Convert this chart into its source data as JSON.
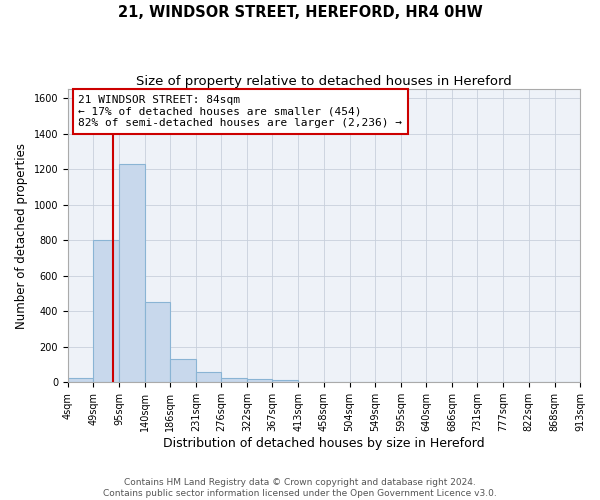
{
  "title": "21, WINDSOR STREET, HEREFORD, HR4 0HW",
  "subtitle": "Size of property relative to detached houses in Hereford",
  "xlabel": "Distribution of detached houses by size in Hereford",
  "ylabel": "Number of detached properties",
  "bin_edges": [
    4,
    49,
    95,
    140,
    186,
    231,
    276,
    322,
    367,
    413,
    458,
    504,
    549,
    595,
    640,
    686,
    731,
    777,
    822,
    868,
    913
  ],
  "bar_heights": [
    25,
    800,
    1230,
    450,
    130,
    60,
    25,
    20,
    15,
    0,
    0,
    0,
    0,
    0,
    0,
    0,
    0,
    0,
    0,
    0
  ],
  "bar_color": "#c8d8ec",
  "bar_edgecolor": "#8ab4d4",
  "bar_linewidth": 0.8,
  "redline_x": 84,
  "ylim": [
    0,
    1650
  ],
  "yticks": [
    0,
    200,
    400,
    600,
    800,
    1000,
    1200,
    1400,
    1600
  ],
  "annotation_text": "21 WINDSOR STREET: 84sqm\n← 17% of detached houses are smaller (454)\n82% of semi-detached houses are larger (2,236) →",
  "annotation_box_color": "#ffffff",
  "annotation_box_edgecolor": "#cc0000",
  "grid_color": "#c8d0dc",
  "background_color": "#eef2f8",
  "footer_text": "Contains HM Land Registry data © Crown copyright and database right 2024.\nContains public sector information licensed under the Open Government Licence v3.0.",
  "title_fontsize": 10.5,
  "subtitle_fontsize": 9.5,
  "xlabel_fontsize": 9,
  "ylabel_fontsize": 8.5,
  "tick_fontsize": 7,
  "annotation_fontsize": 8,
  "footer_fontsize": 6.5
}
